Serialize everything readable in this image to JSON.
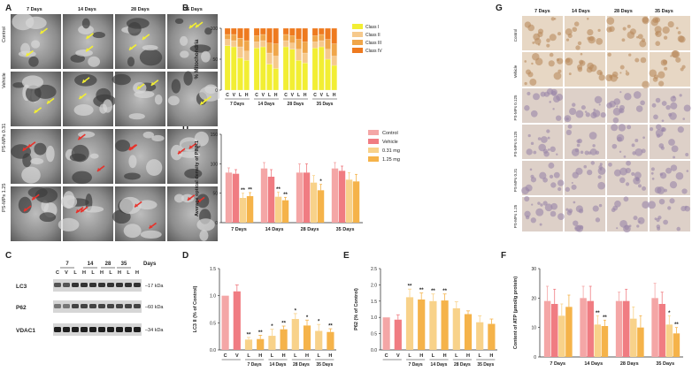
{
  "panels": {
    "A": {
      "letter": "A",
      "cols": [
        "7 Days",
        "14 Days",
        "28 Days",
        "35 Days"
      ],
      "rows": [
        "Control",
        "Vehicle",
        "PS-MPs 0.31",
        "PS-MPs 1.25"
      ]
    },
    "B": {
      "letter": "B",
      "ylabel": "% Mitochondria",
      "legend": [
        "Class I",
        "Class II",
        "Class III",
        "Class IV"
      ],
      "groups": [
        "7 Days",
        "14 Days",
        "28 Days",
        "35 Days"
      ],
      "bar_labels": [
        "C",
        "V",
        "L",
        "H"
      ]
    },
    "C": {
      "letter": "C",
      "timepoints": [
        "7",
        "14",
        "28",
        "35"
      ],
      "days": "Days",
      "lanes": [
        "C",
        "V",
        "L",
        "H",
        "L",
        "H",
        "L",
        "H",
        "L",
        "H"
      ],
      "proteins": [
        {
          "name": "LC3",
          "kda": "17 kDa"
        },
        {
          "name": "P62",
          "kda": "60 kDa"
        },
        {
          "name": "VDAC1",
          "kda": "34 kDa"
        }
      ]
    },
    "D": {
      "letter": "D",
      "ylabel": "LC3 II (% of Control)"
    },
    "E": {
      "letter": "E",
      "ylabel": "P62 (% of Control)"
    },
    "F": {
      "letter": "F",
      "ylabel": "Content of ATP (µmol/g protein)"
    },
    "G": {
      "letter": "G",
      "cols": [
        "7 Days",
        "14 Days",
        "28 Days",
        "35 Days"
      ],
      "rows": [
        "Control",
        "Vehicle",
        "PS-MPs 0.125",
        "PS-MPs 0.125",
        "PS-MPs 0.31",
        "PS-MPs 1.25"
      ]
    },
    "H": {
      "letter": "H",
      "ylabel": "Average optical density of PINK1",
      "legend": [
        "Control",
        "Vehicle",
        "0.31 mg",
        "1.25 mg"
      ]
    }
  },
  "colors": {
    "control": "#f4a6a6",
    "vehicle": "#f07c82",
    "low": "#f8d28a",
    "high": "#f5b34a",
    "classI": "#f2ee33",
    "classII": "#f6c98c",
    "classIII": "#f0a64a",
    "classIV": "#ee7a1f"
  },
  "chart_data": [
    {
      "id": "B",
      "type": "bar",
      "stacked": true,
      "ylim": [
        0,
        100
      ],
      "yticks": [
        0,
        50,
        100
      ],
      "categories": [
        "C",
        "V",
        "L",
        "H",
        "C",
        "V",
        "L",
        "H",
        "C",
        "V",
        "L",
        "H",
        "C",
        "V",
        "L",
        "H"
      ],
      "groups": [
        "7 Days",
        "14 Days",
        "28 Days",
        "35 Days"
      ],
      "series": [
        {
          "name": "Class I",
          "values": [
            72,
            70,
            52,
            48,
            68,
            70,
            42,
            35,
            70,
            66,
            48,
            44,
            68,
            70,
            50,
            40
          ]
        },
        {
          "name": "Class II",
          "values": [
            10,
            10,
            18,
            15,
            10,
            10,
            18,
            20,
            10,
            10,
            18,
            16,
            10,
            10,
            16,
            15
          ]
        },
        {
          "name": "Class III",
          "values": [
            8,
            10,
            14,
            17,
            10,
            10,
            16,
            20,
            10,
            12,
            16,
            18,
            10,
            10,
            16,
            20
          ]
        },
        {
          "name": "Class IV",
          "values": [
            10,
            10,
            16,
            20,
            12,
            10,
            24,
            25,
            10,
            12,
            18,
            22,
            12,
            10,
            18,
            25
          ]
        }
      ],
      "ylabel": "% Mitochondria"
    },
    {
      "id": "H",
      "type": "bar",
      "ylim": [
        0,
        150
      ],
      "yticks": [
        0,
        50,
        100,
        150
      ],
      "categories": [
        "7 Days",
        "14 Days",
        "28 Days",
        "35 Days"
      ],
      "series": [
        {
          "name": "Control",
          "values": [
            85,
            92,
            85,
            92
          ],
          "err": [
            8,
            10,
            15,
            10
          ]
        },
        {
          "name": "Vehicle",
          "values": [
            83,
            78,
            85,
            88
          ],
          "err": [
            7,
            12,
            15,
            8
          ]
        },
        {
          "name": "0.31 mg",
          "values": [
            42,
            44,
            68,
            73
          ],
          "err": [
            8,
            8,
            12,
            12
          ]
        },
        {
          "name": "1.25 mg",
          "values": [
            45,
            38,
            55,
            70
          ],
          "err": [
            6,
            5,
            10,
            12
          ]
        }
      ],
      "stars": [
        [
          "",
          "",
          "**",
          "**"
        ],
        [
          "",
          "",
          "**",
          "**"
        ],
        [
          "",
          "",
          "",
          "*"
        ],
        [
          "",
          "",
          "",
          ""
        ]
      ],
      "ylabel": "Average optical density of PINK1"
    },
    {
      "id": "D",
      "type": "bar",
      "ylim": [
        0,
        1.5
      ],
      "yticks": [
        0.0,
        0.5,
        1.0,
        1.5
      ],
      "bars": [
        {
          "label": "C",
          "value": 1.0,
          "err": 0,
          "color": "control",
          "star": ""
        },
        {
          "label": "V",
          "value": 1.08,
          "err": 0.12,
          "color": "vehicle",
          "star": ""
        },
        {
          "label": "L",
          "value": 0.19,
          "err": 0.04,
          "color": "low",
          "star": "**"
        },
        {
          "label": "H",
          "value": 0.2,
          "err": 0.07,
          "color": "high",
          "star": "**"
        },
        {
          "label": "L",
          "value": 0.26,
          "err": 0.12,
          "color": "low",
          "star": "*"
        },
        {
          "label": "H",
          "value": 0.38,
          "err": 0.06,
          "color": "high",
          "star": "**"
        },
        {
          "label": "L",
          "value": 0.57,
          "err": 0.1,
          "color": "low",
          "star": "*"
        },
        {
          "label": "H",
          "value": 0.45,
          "err": 0.1,
          "color": "high",
          "star": "*"
        },
        {
          "label": "L",
          "value": 0.35,
          "err": 0.12,
          "color": "low",
          "star": "*"
        },
        {
          "label": "H",
          "value": 0.33,
          "err": 0.06,
          "color": "high",
          "star": "**"
        }
      ],
      "groups": [
        {
          "label": "7 Days",
          "from": 2,
          "to": 3
        },
        {
          "label": "14 Days",
          "from": 4,
          "to": 5
        },
        {
          "label": "28 Days",
          "from": 6,
          "to": 7
        },
        {
          "label": "35 Days",
          "from": 8,
          "to": 9
        }
      ],
      "ylabel": "LC3 II (% of Control)"
    },
    {
      "id": "E",
      "type": "bar",
      "ylim": [
        0,
        2.5
      ],
      "yticks": [
        0.0,
        0.5,
        1.0,
        1.5,
        2.0,
        2.5
      ],
      "bars": [
        {
          "label": "C",
          "value": 1.0,
          "err": 0,
          "color": "control",
          "star": ""
        },
        {
          "label": "V",
          "value": 0.93,
          "err": 0.15,
          "color": "vehicle",
          "star": ""
        },
        {
          "label": "L",
          "value": 1.62,
          "err": 0.25,
          "color": "low",
          "star": "**"
        },
        {
          "label": "H",
          "value": 1.55,
          "err": 0.2,
          "color": "high",
          "star": "**"
        },
        {
          "label": "L",
          "value": 1.5,
          "err": 0.22,
          "color": "low",
          "star": "**"
        },
        {
          "label": "H",
          "value": 1.52,
          "err": 0.2,
          "color": "high",
          "star": "**"
        },
        {
          "label": "L",
          "value": 1.28,
          "err": 0.2,
          "color": "low",
          "star": ""
        },
        {
          "label": "H",
          "value": 1.1,
          "err": 0.1,
          "color": "high",
          "star": ""
        },
        {
          "label": "L",
          "value": 0.85,
          "err": 0.2,
          "color": "low",
          "star": ""
        },
        {
          "label": "H",
          "value": 0.8,
          "err": 0.15,
          "color": "high",
          "star": ""
        }
      ],
      "groups": [
        {
          "label": "7 Days",
          "from": 2,
          "to": 3
        },
        {
          "label": "14 Days",
          "from": 4,
          "to": 5
        },
        {
          "label": "28 Days",
          "from": 6,
          "to": 7
        },
        {
          "label": "35 Days",
          "from": 8,
          "to": 9
        }
      ],
      "ylabel": "P62 (% of Control)"
    },
    {
      "id": "F",
      "type": "bar",
      "ylim": [
        0,
        30
      ],
      "yticks": [
        0,
        10,
        20,
        30
      ],
      "categories": [
        "7 Days",
        "14 Days",
        "28 Days",
        "35 Days"
      ],
      "series": [
        {
          "name": "Control",
          "values": [
            19,
            20,
            19,
            20
          ],
          "err": [
            5,
            4,
            3,
            5
          ]
        },
        {
          "name": "Vehicle",
          "values": [
            18,
            19,
            19,
            18
          ],
          "err": [
            5,
            5,
            4,
            4
          ]
        },
        {
          "name": "0.31 mg",
          "values": [
            14,
            11,
            13,
            11
          ],
          "err": [
            4,
            3,
            4,
            3
          ]
        },
        {
          "name": "1.25 mg",
          "values": [
            17,
            10.5,
            10,
            8
          ],
          "err": [
            4,
            2,
            4,
            2
          ]
        }
      ],
      "stars": [
        [
          "",
          "",
          "",
          ""
        ],
        [
          "",
          "",
          "**",
          "**"
        ],
        [
          "",
          "",
          "",
          ""
        ],
        [
          "",
          "",
          "*",
          "**"
        ]
      ],
      "ylabel": "Content of ATP (µmol/g protein)"
    }
  ]
}
